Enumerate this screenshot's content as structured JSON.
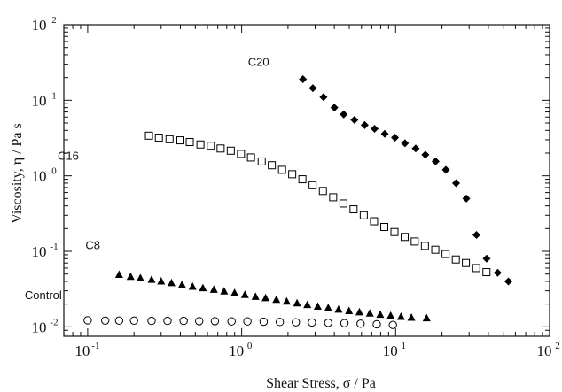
{
  "chart_data": {
    "type": "scatter",
    "xscale": "log",
    "yscale": "log",
    "xlim": [
      0.07,
      100
    ],
    "ylim": [
      0.0075,
      100
    ],
    "xlabel": "Shear Stress, σ / Pa",
    "ylabel": "Viscosity, η / Pa s",
    "grid": false,
    "x_ticks": [
      {
        "base": "10",
        "exp": "-1",
        "value": 0.1
      },
      {
        "base": "10",
        "exp": "0",
        "value": 1
      },
      {
        "base": "10",
        "exp": "1",
        "value": 10
      },
      {
        "base": "10",
        "exp": "2",
        "value": 100
      }
    ],
    "y_ticks": [
      {
        "base": "10",
        "exp": "-2",
        "value": 0.01
      },
      {
        "base": "10",
        "exp": "-1",
        "value": 0.1
      },
      {
        "base": "10",
        "exp": "0",
        "value": 1
      },
      {
        "base": "10",
        "exp": "1",
        "value": 10
      },
      {
        "base": "10",
        "exp": "2",
        "value": 100
      }
    ],
    "series": [
      {
        "name": "C20",
        "marker": "diamond-filled",
        "points": [
          [
            2.5,
            19
          ],
          [
            2.9,
            14.5
          ],
          [
            3.4,
            11
          ],
          [
            4.0,
            8.0
          ],
          [
            4.6,
            6.5
          ],
          [
            5.4,
            5.5
          ],
          [
            6.3,
            4.7
          ],
          [
            7.3,
            4.2
          ],
          [
            8.5,
            3.6
          ],
          [
            9.9,
            3.2
          ],
          [
            11.5,
            2.7
          ],
          [
            13.5,
            2.3
          ],
          [
            15.6,
            1.9
          ],
          [
            18.2,
            1.55
          ],
          [
            21.2,
            1.2
          ],
          [
            24.7,
            0.8
          ],
          [
            28.8,
            0.5
          ],
          [
            33.5,
            0.165
          ],
          [
            39,
            0.08
          ],
          [
            46,
            0.052
          ],
          [
            54,
            0.04
          ]
        ]
      },
      {
        "name": "C16",
        "marker": "square-open",
        "points": [
          [
            0.25,
            3.4
          ],
          [
            0.29,
            3.2
          ],
          [
            0.34,
            3.05
          ],
          [
            0.4,
            2.95
          ],
          [
            0.46,
            2.8
          ],
          [
            0.54,
            2.6
          ],
          [
            0.63,
            2.5
          ],
          [
            0.73,
            2.3
          ],
          [
            0.85,
            2.15
          ],
          [
            0.99,
            1.95
          ],
          [
            1.15,
            1.75
          ],
          [
            1.35,
            1.55
          ],
          [
            1.57,
            1.38
          ],
          [
            1.83,
            1.2
          ],
          [
            2.13,
            1.05
          ],
          [
            2.48,
            0.9
          ],
          [
            2.89,
            0.75
          ],
          [
            3.37,
            0.63
          ],
          [
            3.93,
            0.52
          ],
          [
            4.58,
            0.43
          ],
          [
            5.33,
            0.36
          ],
          [
            6.21,
            0.3
          ],
          [
            7.24,
            0.25
          ],
          [
            8.44,
            0.21
          ],
          [
            9.83,
            0.18
          ],
          [
            11.45,
            0.155
          ],
          [
            13.3,
            0.135
          ],
          [
            15.5,
            0.118
          ],
          [
            18.1,
            0.105
          ],
          [
            21.1,
            0.092
          ],
          [
            24.6,
            0.078
          ],
          [
            28.6,
            0.07
          ],
          [
            33.4,
            0.06
          ],
          [
            38.9,
            0.053
          ]
        ]
      },
      {
        "name": "C8",
        "marker": "triangle-filled",
        "points": [
          [
            0.16,
            0.049
          ],
          [
            0.19,
            0.046
          ],
          [
            0.22,
            0.044
          ],
          [
            0.26,
            0.042
          ],
          [
            0.3,
            0.04
          ],
          [
            0.35,
            0.038
          ],
          [
            0.41,
            0.036
          ],
          [
            0.48,
            0.034
          ],
          [
            0.56,
            0.0325
          ],
          [
            0.66,
            0.031
          ],
          [
            0.77,
            0.0295
          ],
          [
            0.9,
            0.028
          ],
          [
            1.05,
            0.0265
          ],
          [
            1.23,
            0.025
          ],
          [
            1.43,
            0.024
          ],
          [
            1.68,
            0.0228
          ],
          [
            1.96,
            0.0216
          ],
          [
            2.29,
            0.0205
          ],
          [
            2.67,
            0.0195
          ],
          [
            3.12,
            0.0185
          ],
          [
            3.65,
            0.0177
          ],
          [
            4.26,
            0.0169
          ],
          [
            4.98,
            0.0162
          ],
          [
            5.82,
            0.0156
          ],
          [
            6.8,
            0.015
          ],
          [
            7.94,
            0.0145
          ],
          [
            9.28,
            0.014
          ],
          [
            10.84,
            0.0136
          ],
          [
            12.66,
            0.0132
          ],
          [
            15.9,
            0.013
          ]
        ]
      },
      {
        "name": "Control",
        "marker": "circle-open",
        "points": [
          [
            0.1,
            0.0122
          ],
          [
            0.13,
            0.0121
          ],
          [
            0.16,
            0.0121
          ],
          [
            0.2,
            0.0121
          ],
          [
            0.26,
            0.012
          ],
          [
            0.33,
            0.012
          ],
          [
            0.42,
            0.012
          ],
          [
            0.53,
            0.0119
          ],
          [
            0.67,
            0.0119
          ],
          [
            0.86,
            0.0118
          ],
          [
            1.09,
            0.0118
          ],
          [
            1.39,
            0.0117
          ],
          [
            1.77,
            0.0116
          ],
          [
            2.25,
            0.0115
          ],
          [
            2.86,
            0.0114
          ],
          [
            3.65,
            0.0113
          ],
          [
            4.65,
            0.0112
          ],
          [
            5.92,
            0.011
          ],
          [
            7.54,
            0.0108
          ],
          [
            9.6,
            0.0106
          ]
        ]
      }
    ],
    "series_labels": [
      {
        "text": "C20",
        "series": "C20"
      },
      {
        "text": "C16",
        "series": "C16"
      },
      {
        "text": "C8",
        "series": "C8"
      },
      {
        "text": "Control",
        "series": "Control"
      }
    ]
  }
}
